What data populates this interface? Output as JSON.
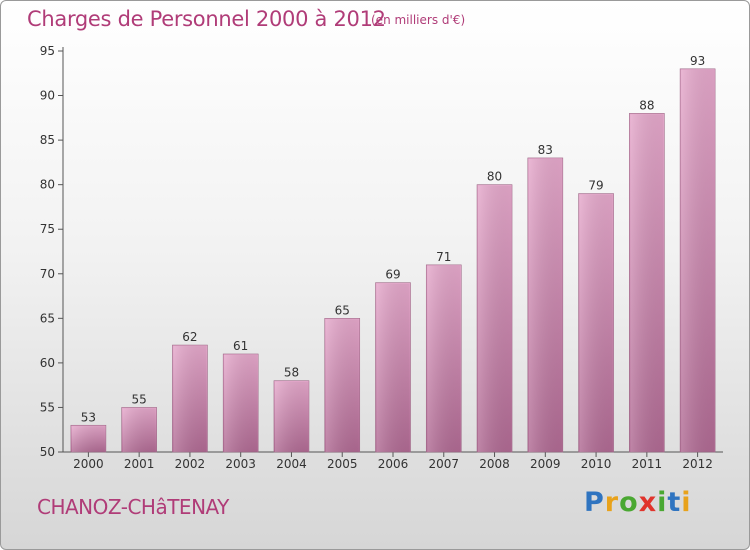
{
  "header": {
    "title": "Charges de Personnel 2000 à 2012",
    "subtitle": "(en milliers d'€)"
  },
  "footer": {
    "commune": "CHANOZ-CHâTENAY",
    "logo_letters": [
      {
        "char": "P",
        "color": "#2f74c0"
      },
      {
        "char": "r",
        "color": "#e8a21b"
      },
      {
        "char": "o",
        "color": "#4aa832"
      },
      {
        "char": "x",
        "color": "#e0342c"
      },
      {
        "char": "i",
        "color": "#4aa832"
      },
      {
        "char": "t",
        "color": "#2f74c0"
      },
      {
        "char": "i",
        "color": "#e8a21b"
      }
    ]
  },
  "colors": {
    "bar_light": "#e5a8cb",
    "bar_dark": "#b06a93",
    "accent": "#b03c78"
  },
  "chart_data": {
    "type": "bar",
    "categories": [
      "2000",
      "2001",
      "2002",
      "2003",
      "2004",
      "2005",
      "2006",
      "2007",
      "2008",
      "2009",
      "2010",
      "2011",
      "2012"
    ],
    "values": [
      53,
      55,
      62,
      61,
      58,
      65,
      69,
      71,
      80,
      83,
      79,
      88,
      93
    ],
    "title": "Charges de Personnel 2000 à 2012",
    "subtitle": "(en milliers d'€)",
    "xlabel": "",
    "ylabel": "",
    "ylim": [
      50,
      95
    ],
    "yticks": [
      50,
      55,
      60,
      65,
      70,
      75,
      80,
      85,
      90,
      95
    ],
    "grid": false,
    "legend": "none"
  }
}
